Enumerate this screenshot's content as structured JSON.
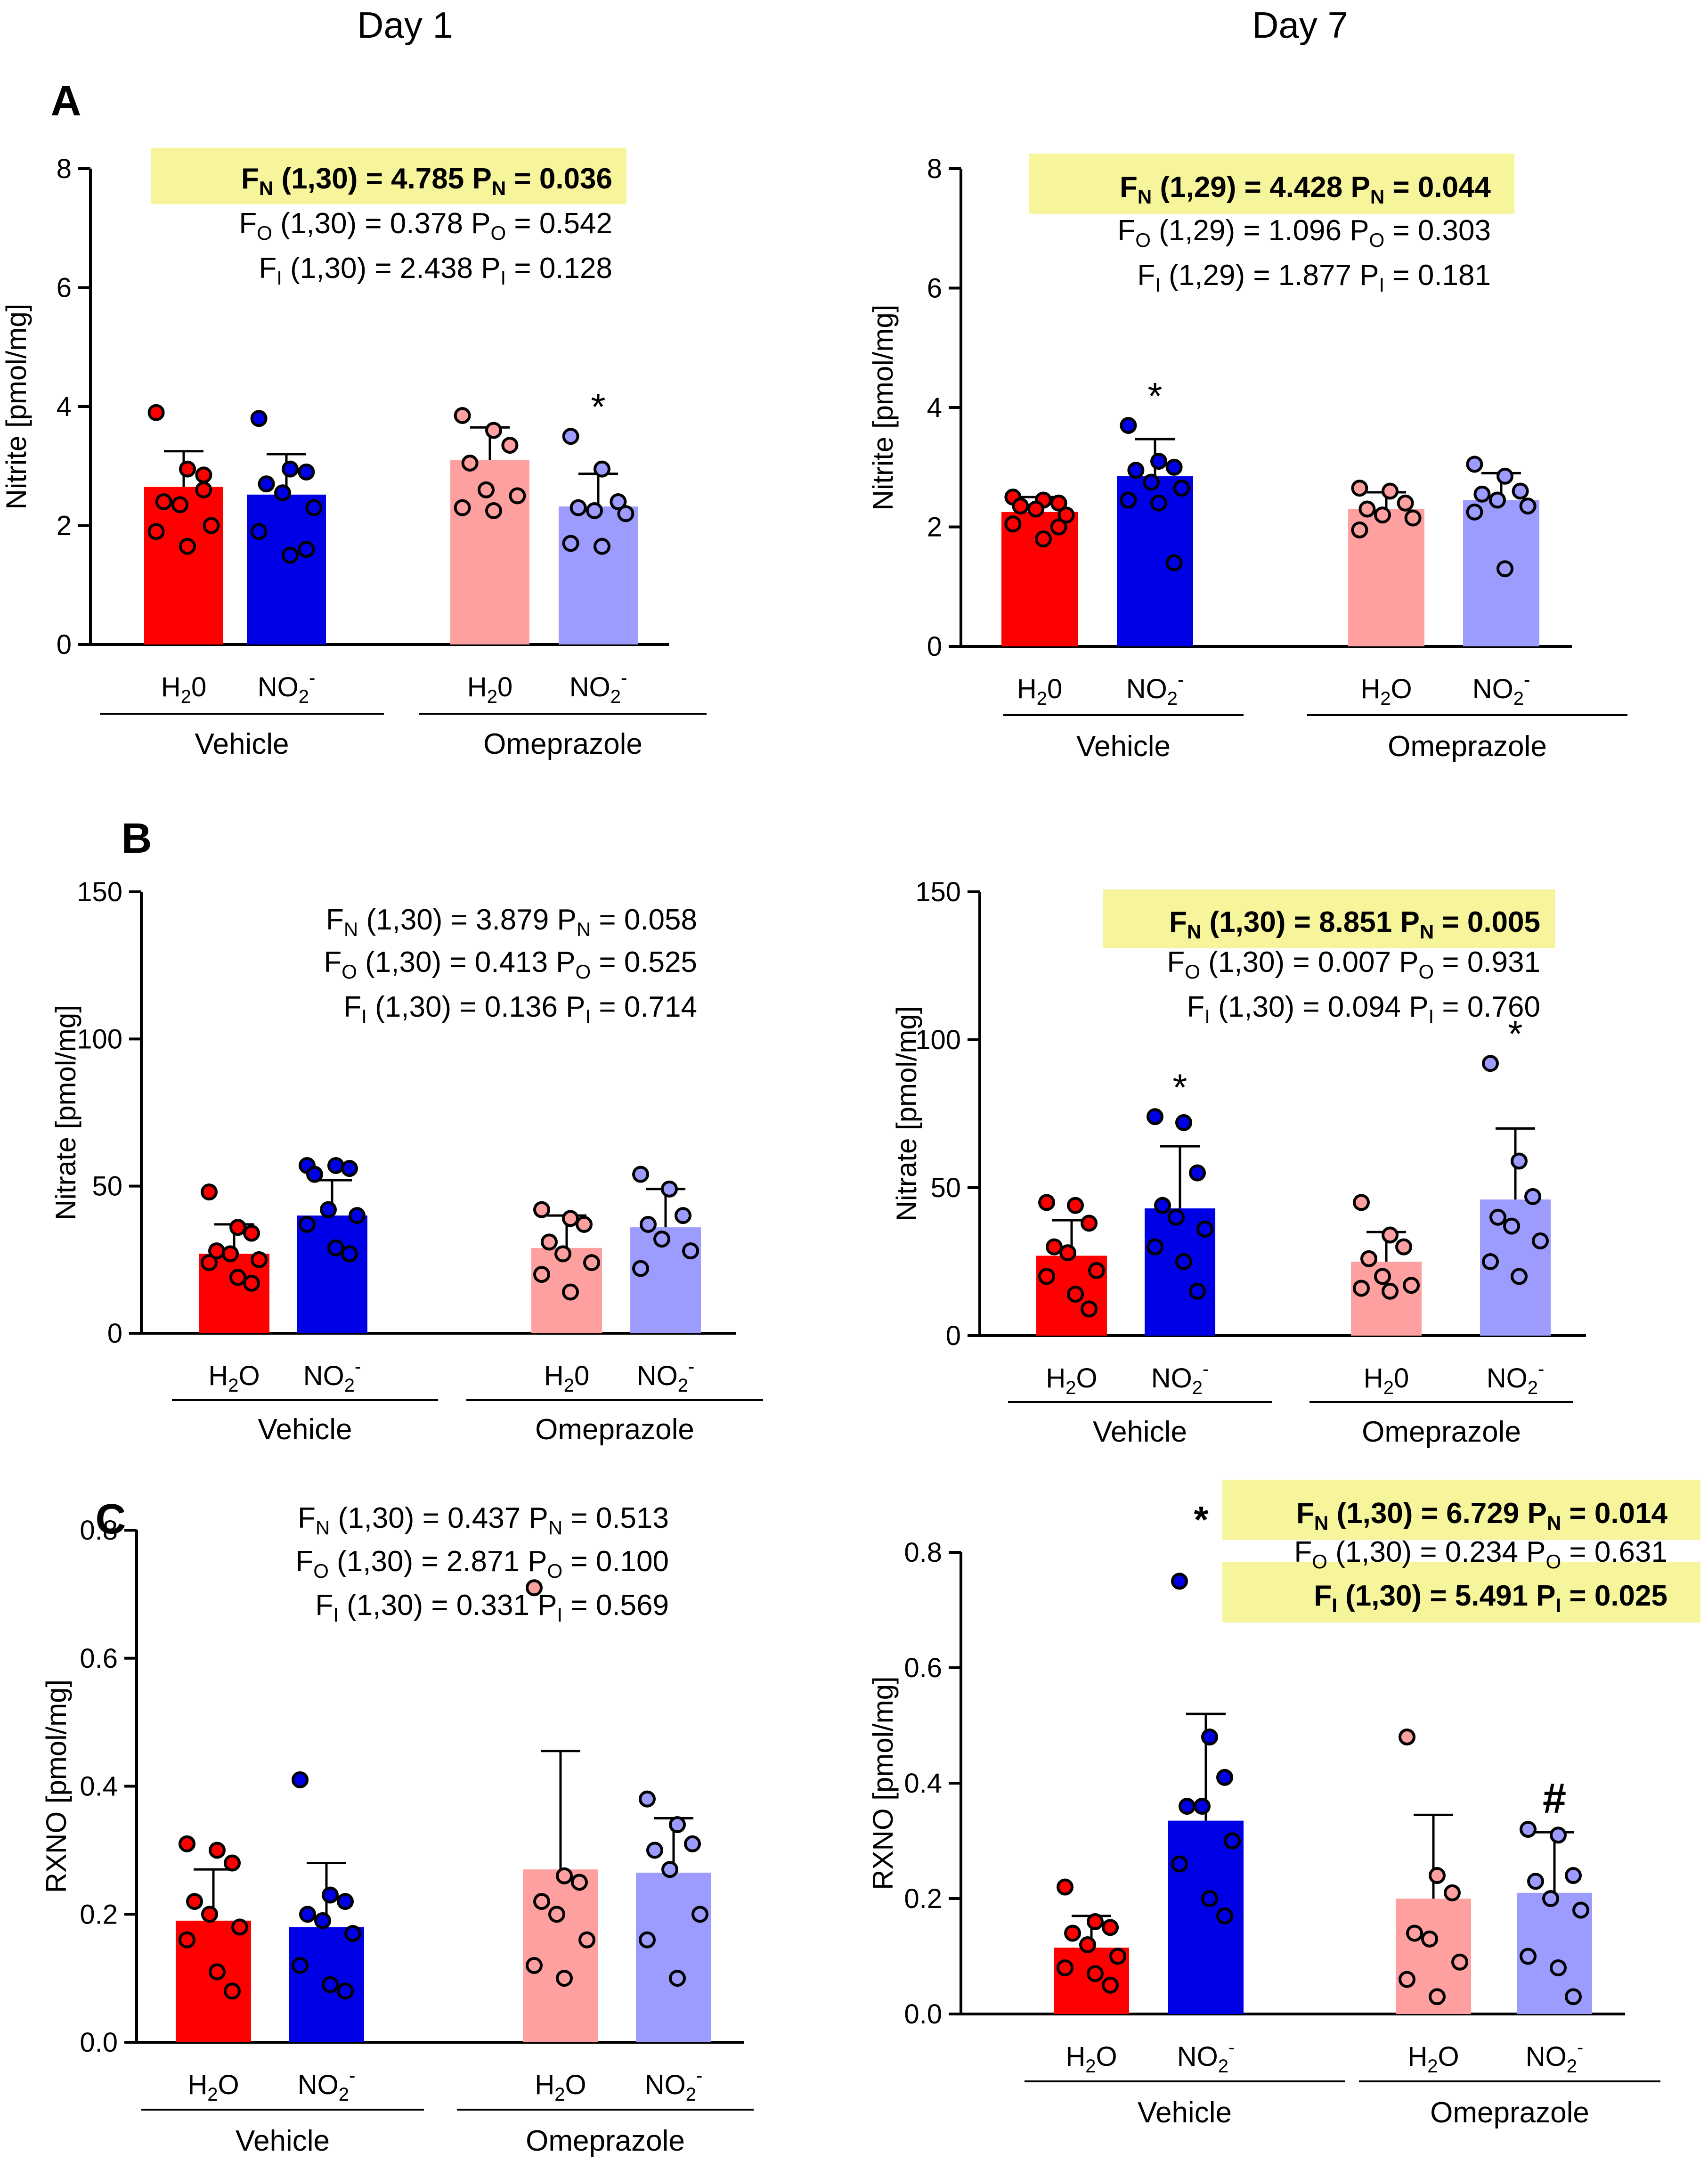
{
  "columns": [
    "Day 1",
    "Day 7"
  ],
  "colors": {
    "h2o_vehicle": "#ff0000",
    "no2_vehicle": "#0000e6",
    "h2o_omeprazole": "#ffa0a0",
    "no2_omeprazole": "#9c9cff",
    "highlight": "#f7f59b",
    "axis": "#000000"
  },
  "chart_data": [
    {
      "type": "bar",
      "panel": "A",
      "day": "Day 1",
      "ylabel": "Nitrite [pmol/mg]",
      "ylim": [
        0,
        8
      ],
      "yticks": [
        "0",
        "2",
        "4",
        "6",
        "8"
      ],
      "ytick_values": [
        0,
        2,
        4,
        6,
        8
      ],
      "groups": [
        "Vehicle",
        "Omeprazole"
      ],
      "categories": [
        {
          "label": "H",
          "sub": "2",
          "tail": "0"
        },
        {
          "label": "NO",
          "sub": "2",
          "sup": "-"
        },
        {
          "label": "H",
          "sub": "2",
          "tail": "0"
        },
        {
          "label": "NO",
          "sub": "2",
          "sup": "-"
        }
      ],
      "means": [
        2.65,
        2.52,
        3.1,
        2.32
      ],
      "sd": [
        0.6,
        0.68,
        0.55,
        0.55
      ],
      "marks": [
        "",
        "",
        "",
        "*"
      ],
      "points": [
        [
          3.9,
          2.95,
          2.85,
          2.4,
          2.35,
          2.0,
          1.9,
          1.65,
          2.6
        ],
        [
          3.8,
          2.95,
          2.9,
          2.7,
          2.55,
          2.3,
          1.9,
          1.5,
          1.6
        ],
        [
          3.85,
          3.6,
          3.35,
          3.05,
          2.6,
          2.5,
          2.3,
          2.25
        ],
        [
          3.5,
          2.95,
          2.4,
          2.3,
          2.25,
          2.2,
          1.7,
          1.65
        ]
      ],
      "stats": [
        {
          "F": "F",
          "Fsub": "N",
          "df": "(1,30)",
          "Fval": "4.785",
          "P": "P",
          "Psub": "N",
          "Pval": "0.036",
          "highlight": true
        },
        {
          "F": "F",
          "Fsub": "O",
          "df": "(1,30)",
          "Fval": "0.378",
          "P": "P",
          "Psub": "O",
          "Pval": "0.542",
          "highlight": false
        },
        {
          "F": "F",
          "Fsub": "I",
          "df": "(1,30)",
          "Fval": "2.438",
          "P": "P",
          "Psub": "I",
          "Pval": "0.128",
          "highlight": false
        }
      ]
    },
    {
      "type": "bar",
      "panel": "",
      "day": "Day 7",
      "ylabel": "Nitrite [pmol/mg]",
      "ylim": [
        0,
        8
      ],
      "yticks": [
        "0",
        "2",
        "4",
        "6",
        "8"
      ],
      "ytick_values": [
        0,
        2,
        4,
        6,
        8
      ],
      "groups": [
        "Vehicle",
        "Omeprazole"
      ],
      "categories": [
        {
          "label": "H",
          "sub": "2",
          "tail": "0"
        },
        {
          "label": "NO",
          "sub": "2",
          "sup": "-"
        },
        {
          "label": "H",
          "sub": "2",
          "tail": "O"
        },
        {
          "label": "NO",
          "sub": "2",
          "sup": "-"
        }
      ],
      "means": [
        2.25,
        2.85,
        2.3,
        2.45
      ],
      "sd": [
        0.25,
        0.62,
        0.28,
        0.45
      ],
      "marks": [
        "",
        "*",
        "",
        ""
      ],
      "points": [
        [
          2.5,
          2.45,
          2.4,
          2.35,
          2.3,
          2.2,
          2.05,
          1.8,
          2.0
        ],
        [
          3.7,
          3.1,
          3.0,
          2.95,
          2.75,
          2.65,
          2.45,
          2.4,
          1.4
        ],
        [
          2.65,
          2.6,
          2.4,
          2.3,
          2.2,
          2.15,
          1.95
        ],
        [
          3.05,
          2.85,
          2.6,
          2.55,
          2.45,
          2.35,
          2.25,
          1.3
        ]
      ],
      "stats": [
        {
          "F": "F",
          "Fsub": "N",
          "df": "(1,29)",
          "Fval": "4.428",
          "P": "P",
          "Psub": "N",
          "Pval": "0.044",
          "highlight": true
        },
        {
          "F": "F",
          "Fsub": "O",
          "df": "(1,29)",
          "Fval": "1.096",
          "P": "P",
          "Psub": "O",
          "Pval": "0.303",
          "highlight": false
        },
        {
          "F": "F",
          "Fsub": "I",
          "df": "(1,29)",
          "Fval": "1.877",
          "P": "P",
          "Psub": "I",
          "Pval": "0.181",
          "highlight": false
        }
      ]
    },
    {
      "type": "bar",
      "panel": "B",
      "day": "Day 1",
      "ylabel": "Nitrate [pmol/mg]",
      "ylim": [
        0,
        150
      ],
      "yticks": [
        "0",
        "50",
        "100",
        "150"
      ],
      "ytick_values": [
        0,
        50,
        100,
        150
      ],
      "groups": [
        "Vehicle",
        "Omeprazole"
      ],
      "categories": [
        {
          "label": "H",
          "sub": "2",
          "tail": "O"
        },
        {
          "label": "NO",
          "sub": "2",
          "sup": "-"
        },
        {
          "label": "H",
          "sub": "2",
          "tail": "0"
        },
        {
          "label": "NO",
          "sub": "2",
          "sup": "-"
        }
      ],
      "means": [
        27,
        40,
        29,
        36
      ],
      "sd": [
        10,
        12,
        11,
        13
      ],
      "marks": [
        "",
        "",
        "",
        ""
      ],
      "points": [
        [
          48,
          36,
          34,
          28,
          27,
          25,
          24,
          19,
          17
        ],
        [
          57,
          57,
          56,
          54,
          42,
          40,
          37,
          29,
          27
        ],
        [
          42,
          39,
          37,
          31,
          27,
          24,
          20,
          14
        ],
        [
          54,
          49,
          40,
          37,
          32,
          28,
          22
        ]
      ],
      "stats": [
        {
          "F": "F",
          "Fsub": "N",
          "df": "(1,30)",
          "Fval": "3.879",
          "P": "P",
          "Psub": "N",
          "Pval": "0.058",
          "highlight": false
        },
        {
          "F": "F",
          "Fsub": "O",
          "df": "(1,30)",
          "Fval": "0.413",
          "P": "P",
          "Psub": "O",
          "Pval": "0.525",
          "highlight": false
        },
        {
          "F": "F",
          "Fsub": "I",
          "df": "(1,30)",
          "Fval": "0.136",
          "P": "P",
          "Psub": "I",
          "Pval": "0.714",
          "highlight": false
        }
      ]
    },
    {
      "type": "bar",
      "panel": "",
      "day": "Day 7",
      "ylabel": "Nitrate [pmol/mg]",
      "ylim": [
        0,
        150
      ],
      "yticks": [
        "0",
        "50",
        "100",
        "150"
      ],
      "ytick_values": [
        0,
        50,
        100,
        150
      ],
      "groups": [
        "Vehicle",
        "Omeprazole"
      ],
      "categories": [
        {
          "label": "H",
          "sub": "2",
          "tail": "O"
        },
        {
          "label": "NO",
          "sub": "2",
          "sup": "-"
        },
        {
          "label": "H",
          "sub": "2",
          "tail": "0"
        },
        {
          "label": "NO",
          "sub": "2",
          "sup": "-"
        }
      ],
      "means": [
        27,
        43,
        25,
        46
      ],
      "sd": [
        12,
        21,
        10,
        24
      ],
      "marks": [
        "",
        "*",
        "",
        "*"
      ],
      "points": [
        [
          45,
          44,
          38,
          30,
          28,
          22,
          20,
          14,
          9
        ],
        [
          74,
          72,
          55,
          44,
          40,
          36,
          30,
          25,
          15
        ],
        [
          45,
          34,
          30,
          26,
          20,
          17,
          16,
          15
        ],
        [
          92,
          59,
          47,
          40,
          37,
          32,
          25,
          20
        ]
      ],
      "stats": [
        {
          "F": "F",
          "Fsub": "N",
          "df": "(1,30)",
          "Fval": "8.851",
          "P": "P",
          "Psub": "N",
          "Pval": "0.005",
          "highlight": true
        },
        {
          "F": "F",
          "Fsub": "O",
          "df": "(1,30)",
          "Fval": "0.007",
          "P": "P",
          "Psub": "O",
          "Pval": "0.931",
          "highlight": false
        },
        {
          "F": "F",
          "Fsub": "I",
          "df": "(1,30)",
          "Fval": "0.094",
          "P": "P",
          "Psub": "I",
          "Pval": "0.760",
          "highlight": false
        }
      ]
    },
    {
      "type": "bar",
      "panel": "C",
      "day": "Day 1",
      "ylabel": "RXNO [pmol/mg]",
      "ylim": [
        0,
        0.8
      ],
      "yticks": [
        "0.0",
        "0.2",
        "0.4",
        "0.6",
        "0.8"
      ],
      "ytick_values": [
        0,
        0.2,
        0.4,
        0.6,
        0.8
      ],
      "groups": [
        "Vehicle",
        "Omeprazole"
      ],
      "categories": [
        {
          "label": "H",
          "sub": "2",
          "tail": "O"
        },
        {
          "label": "NO",
          "sub": "2",
          "sup": "-"
        },
        {
          "label": "H",
          "sub": "2",
          "tail": "O"
        },
        {
          "label": "NO",
          "sub": "2",
          "sup": "-"
        }
      ],
      "means": [
        0.19,
        0.18,
        0.27,
        0.265
      ],
      "sd": [
        0.08,
        0.1,
        0.185,
        0.085
      ],
      "marks": [
        "",
        "",
        "",
        ""
      ],
      "points": [
        [
          0.31,
          0.3,
          0.28,
          0.22,
          0.2,
          0.18,
          0.16,
          0.11,
          0.08
        ],
        [
          0.41,
          0.23,
          0.22,
          0.2,
          0.19,
          0.17,
          0.12,
          0.09,
          0.08
        ],
        [
          0.71,
          0.26,
          0.25,
          0.22,
          0.2,
          0.16,
          0.12,
          0.1
        ],
        [
          0.38,
          0.34,
          0.31,
          0.3,
          0.27,
          0.2,
          0.16,
          0.1
        ]
      ],
      "stats": [
        {
          "F": "F",
          "Fsub": "N",
          "df": "(1,30)",
          "Fval": "0.437",
          "P": "P",
          "Psub": "N",
          "Pval": "0.513",
          "highlight": false
        },
        {
          "F": "F",
          "Fsub": "O",
          "df": "(1,30)",
          "Fval": "2.871",
          "P": "P",
          "Psub": "O",
          "Pval": "0.100",
          "highlight": false
        },
        {
          "F": "F",
          "Fsub": "I",
          "df": "(1,30)",
          "Fval": "0.331",
          "P": "P",
          "Psub": "I",
          "Pval": "0.569",
          "highlight": false
        }
      ]
    },
    {
      "type": "bar",
      "panel": "",
      "day": "Day 7",
      "ylabel": "RXNO [pmol/mg]",
      "ylim": [
        0,
        0.8
      ],
      "yticks": [
        "0.0",
        "0.2",
        "0.4",
        "0.6",
        "0.8"
      ],
      "ytick_values": [
        0,
        0.2,
        0.4,
        0.6,
        0.8
      ],
      "groups": [
        "Vehicle",
        "Omeprazole"
      ],
      "categories": [
        {
          "label": "H",
          "sub": "2",
          "tail": "O"
        },
        {
          "label": "NO",
          "sub": "2",
          "sup": "-"
        },
        {
          "label": "H",
          "sub": "2",
          "tail": "O"
        },
        {
          "label": "NO",
          "sub": "2",
          "sup": "-"
        }
      ],
      "means": [
        0.115,
        0.335,
        0.2,
        0.21
      ],
      "sd": [
        0.055,
        0.185,
        0.145,
        0.105
      ],
      "marks": [
        "",
        "*",
        "",
        "#"
      ],
      "mark_positions": [
        "",
        "above-axis",
        "",
        "above-bar"
      ],
      "points": [
        [
          0.22,
          0.16,
          0.15,
          0.14,
          0.12,
          0.1,
          0.08,
          0.07,
          0.05
        ],
        [
          0.75,
          0.48,
          0.41,
          0.36,
          0.36,
          0.3,
          0.26,
          0.2,
          0.17
        ],
        [
          0.48,
          0.24,
          0.21,
          0.14,
          0.13,
          0.09,
          0.06,
          0.03
        ],
        [
          0.32,
          0.31,
          0.24,
          0.23,
          0.2,
          0.18,
          0.1,
          0.08,
          0.03
        ]
      ],
      "stats": [
        {
          "F": "F",
          "Fsub": "N",
          "df": "(1,30)",
          "Fval": "6.729",
          "P": "P",
          "Psub": "N",
          "Pval": "0.014",
          "highlight": true
        },
        {
          "F": "F",
          "Fsub": "O",
          "df": "(1,30)",
          "Fval": "0.234",
          "P": "P",
          "Psub": "O",
          "Pval": "0.631",
          "highlight": false
        },
        {
          "F": "F",
          "Fsub": "I",
          "df": "(1,30)",
          "Fval": "5.491",
          "P": "P",
          "Psub": "I",
          "Pval": "0.025",
          "highlight": true
        }
      ]
    }
  ]
}
